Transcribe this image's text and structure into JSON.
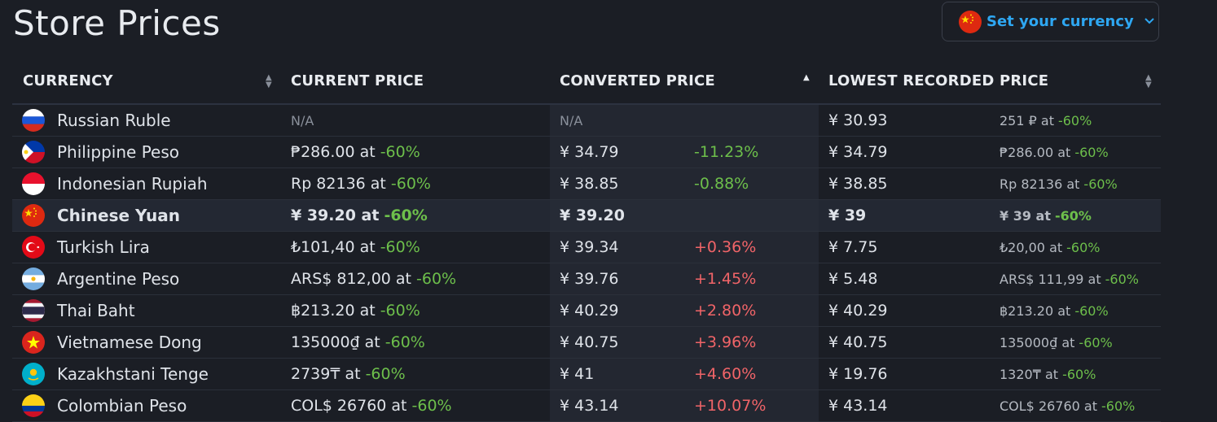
{
  "page_title": "Store Prices",
  "currency_button": {
    "label": "Set your currency",
    "flag": "china-flag-icon",
    "chevron": "chevron-down-icon"
  },
  "columns": {
    "currency": "CURRENCY",
    "current_price": "CURRENT PRICE",
    "converted_price": "CONVERTED PRICE",
    "lowest_recorded_price": "LOWEST RECORDED PRICE"
  },
  "colors": {
    "accent": "#2ea7f2",
    "positive": "#6dbf4b",
    "negative": "#f06468",
    "background": "#1b1e25"
  },
  "rows": [
    {
      "currency": "Russian Ruble",
      "flag": "russia-flag-icon",
      "current_price": "N/A",
      "current_discount": "",
      "converted": "N/A",
      "diff": "",
      "lowest": "¥ 30.93",
      "lowest_detail": "251 ₽ at ",
      "lowest_discount": "-60%"
    },
    {
      "currency": "Philippine Peso",
      "flag": "philippines-flag-icon",
      "current_price": "₱286.00 at ",
      "current_discount": "-60%",
      "converted": "¥ 34.79",
      "diff": "-11.23%",
      "lowest": "¥ 34.79",
      "lowest_detail": "₱286.00 at ",
      "lowest_discount": "-60%"
    },
    {
      "currency": "Indonesian Rupiah",
      "flag": "indonesia-flag-icon",
      "current_price": "Rp 82136 at ",
      "current_discount": "-60%",
      "converted": "¥ 38.85",
      "diff": "-0.88%",
      "lowest": "¥ 38.85",
      "lowest_detail": "Rp 82136 at ",
      "lowest_discount": "-60%"
    },
    {
      "currency": "Chinese Yuan",
      "flag": "china-flag-icon",
      "current_price": "¥ 39.20 at ",
      "current_discount": "-60%",
      "converted": "¥ 39.20",
      "diff": "",
      "lowest": "¥ 39",
      "lowest_detail": "¥ 39 at ",
      "lowest_discount": "-60%"
    },
    {
      "currency": "Turkish Lira",
      "flag": "turkey-flag-icon",
      "current_price": "₺101,40 at ",
      "current_discount": "-60%",
      "converted": "¥ 39.34",
      "diff": "+0.36%",
      "lowest": "¥ 7.75",
      "lowest_detail": "₺20,00 at ",
      "lowest_discount": "-60%"
    },
    {
      "currency": "Argentine Peso",
      "flag": "argentina-flag-icon",
      "current_price": "ARS$ 812,00 at ",
      "current_discount": "-60%",
      "converted": "¥ 39.76",
      "diff": "+1.45%",
      "lowest": "¥ 5.48",
      "lowest_detail": "ARS$ 111,99 at ",
      "lowest_discount": "-60%"
    },
    {
      "currency": "Thai Baht",
      "flag": "thailand-flag-icon",
      "current_price": "฿213.20 at ",
      "current_discount": "-60%",
      "converted": "¥ 40.29",
      "diff": "+2.80%",
      "lowest": "¥ 40.29",
      "lowest_detail": "฿213.20 at ",
      "lowest_discount": "-60%"
    },
    {
      "currency": "Vietnamese Dong",
      "flag": "vietnam-flag-icon",
      "current_price": "135000₫ at ",
      "current_discount": "-60%",
      "converted": "¥ 40.75",
      "diff": "+3.96%",
      "lowest": "¥ 40.75",
      "lowest_detail": "135000₫ at ",
      "lowest_discount": "-60%"
    },
    {
      "currency": "Kazakhstani Tenge",
      "flag": "kazakhstan-flag-icon",
      "current_price": "2739₸ at ",
      "current_discount": "-60%",
      "converted": "¥ 41",
      "diff": "+4.60%",
      "lowest": "¥ 19.76",
      "lowest_detail": "1320₸ at ",
      "lowest_discount": "-60%"
    },
    {
      "currency": "Colombian Peso",
      "flag": "colombia-flag-icon",
      "current_price": "COL$ 26760 at ",
      "current_discount": "-60%",
      "converted": "¥ 43.14",
      "diff": "+10.07%",
      "lowest": "¥ 43.14",
      "lowest_detail": "COL$ 26760 at ",
      "lowest_discount": "-60%"
    }
  ]
}
